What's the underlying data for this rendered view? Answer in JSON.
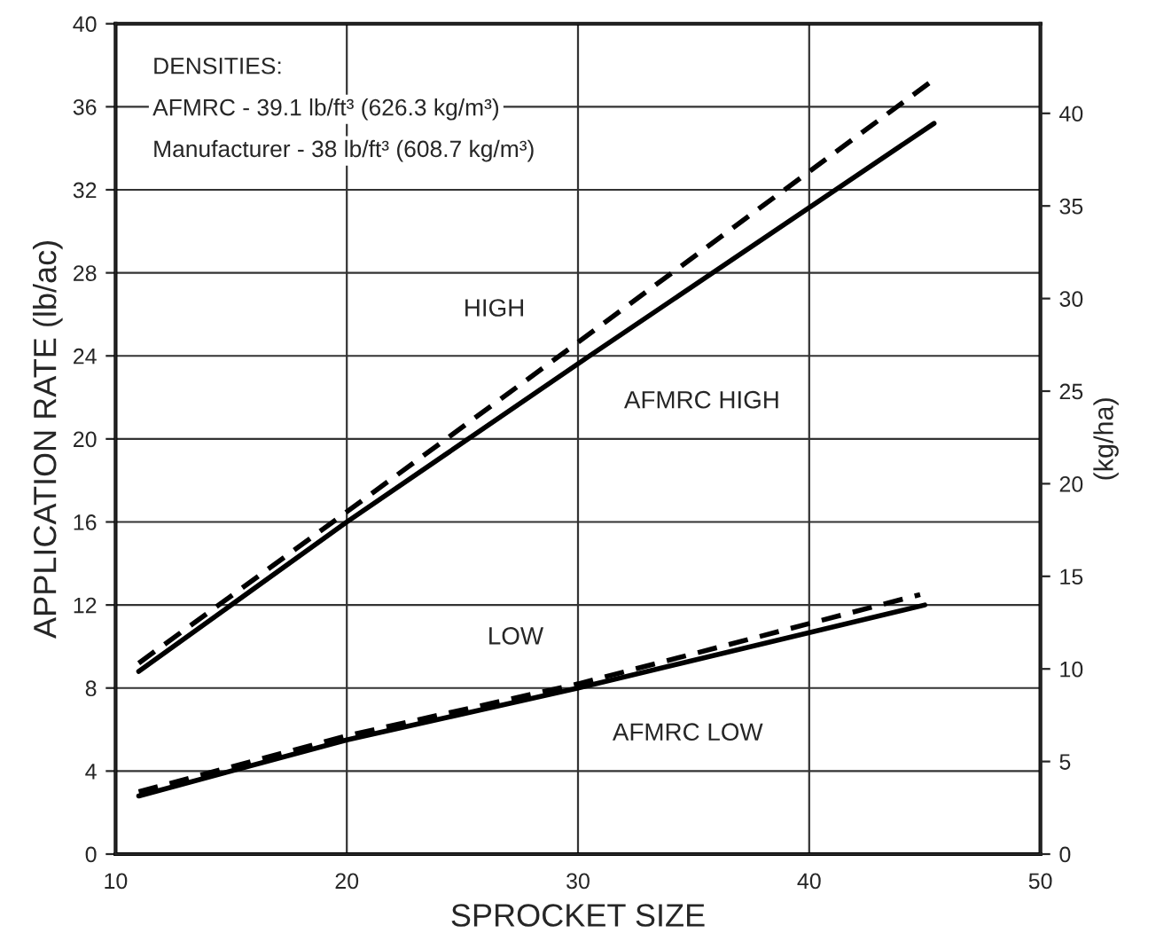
{
  "chart_data": {
    "type": "line",
    "xlabel": "SPROCKET SIZE",
    "ylabel": "APPLICATION RATE (lb/ac)",
    "y2label": "(kg/ha)",
    "xlim": [
      10,
      50
    ],
    "xticks": [
      10,
      20,
      30,
      40,
      50
    ],
    "ylim": [
      0,
      40
    ],
    "yticks": [
      0,
      4,
      8,
      12,
      16,
      20,
      24,
      28,
      32,
      36,
      40
    ],
    "y2lim": [
      0,
      44.84
    ],
    "y2ticks": [
      0,
      5,
      10,
      15,
      20,
      25,
      30,
      35,
      40
    ],
    "grid": true,
    "marker": "none",
    "annotations": [
      "DENSITIES:",
      "AFMRC - 39.1 lb/ft³ (626.3 kg/m³)",
      "Manufacturer - 38 lb/ft³ (608.7 kg/m³)"
    ],
    "series": [
      {
        "name": "HIGH",
        "color": "#000000",
        "line_style": "dashed",
        "x": [
          11,
          19.4,
          29.2,
          45.5
        ],
        "values": [
          9.2,
          16,
          24,
          37.4
        ]
      },
      {
        "name": "AFMRC HIGH",
        "color": "#000000",
        "line_style": "solid",
        "x": [
          11,
          20,
          30.5,
          45.4
        ],
        "values": [
          8.8,
          16,
          24,
          35.2
        ]
      },
      {
        "name": "LOW",
        "color": "#000000",
        "line_style": "dashed",
        "x": [
          11,
          20,
          30,
          44.8
        ],
        "values": [
          3.0,
          5.7,
          8.2,
          12.5
        ]
      },
      {
        "name": "AFMRC LOW",
        "color": "#000000",
        "line_style": "solid",
        "x": [
          11,
          20,
          30,
          45
        ],
        "values": [
          2.8,
          5.5,
          8.0,
          12.0
        ]
      }
    ]
  }
}
